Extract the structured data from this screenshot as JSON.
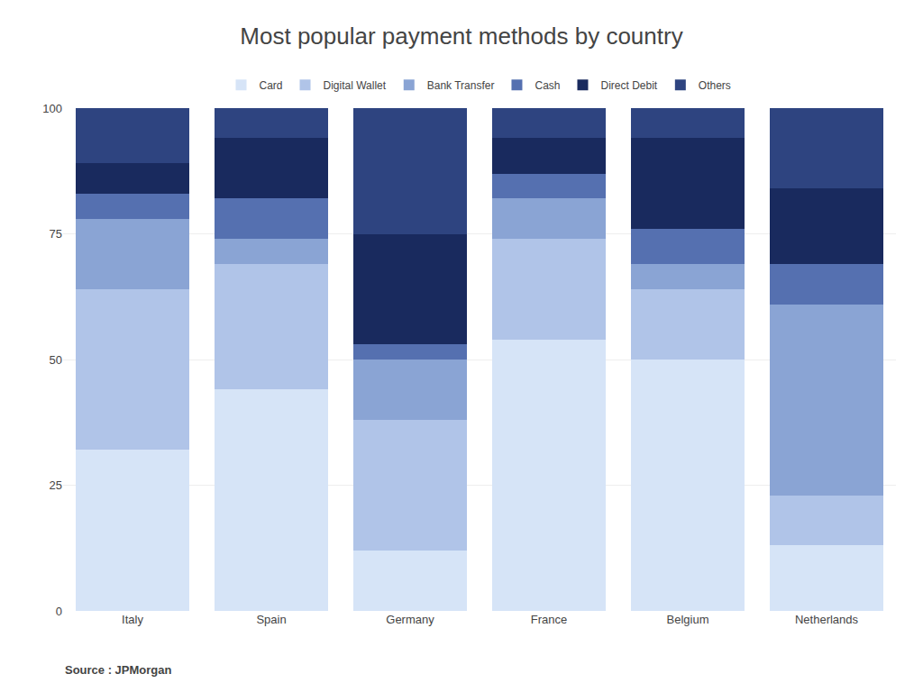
{
  "chart_data": {
    "type": "bar",
    "stacked": true,
    "title": "Most popular payment methods by country",
    "annotations": [
      "Source : JPMorgan"
    ],
    "categories": [
      "Italy",
      "Spain",
      "Germany",
      "France",
      "Belgium",
      "Netherlands"
    ],
    "series": [
      {
        "name": "Card",
        "color": "#d6e4f7",
        "values": [
          32,
          44,
          12,
          54,
          50,
          13
        ]
      },
      {
        "name": "Digital Wallet",
        "color": "#b0c4e8",
        "values": [
          32,
          25,
          26,
          20,
          14,
          10
        ]
      },
      {
        "name": "Bank Transfer",
        "color": "#8aa4d4",
        "values": [
          14,
          5,
          12,
          8,
          5,
          38
        ]
      },
      {
        "name": "Cash",
        "color": "#5570b0",
        "values": [
          5,
          8,
          3,
          5,
          7,
          8
        ]
      },
      {
        "name": "Direct Debit",
        "color": "#192a5e",
        "values": [
          6,
          12,
          22,
          7,
          18,
          15
        ]
      },
      {
        "name": "Others",
        "color": "#2e4480",
        "values": [
          11,
          6,
          25,
          6,
          6,
          16
        ]
      }
    ],
    "ylim": [
      0,
      100
    ],
    "yticks": [
      0,
      25,
      50,
      75,
      100
    ],
    "grid": true,
    "legend": "upper center"
  }
}
